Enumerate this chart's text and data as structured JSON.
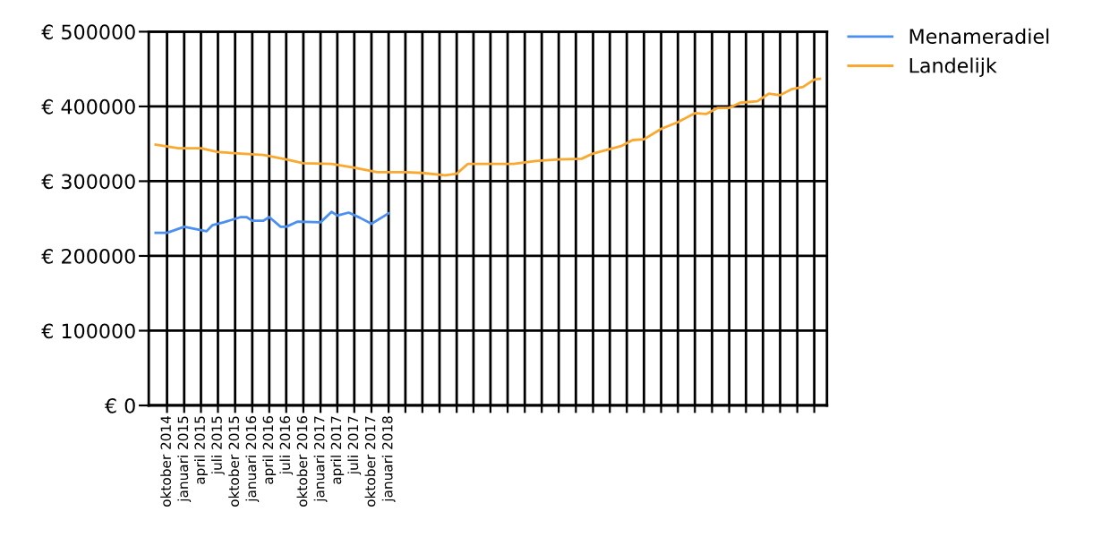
{
  "chart_data": {
    "type": "line",
    "ylim": [
      0,
      500000
    ],
    "yticks": [
      {
        "value": 0,
        "label": "€ 0"
      },
      {
        "value": 100000,
        "label": "€ 100000"
      },
      {
        "value": 200000,
        "label": "€ 200000"
      },
      {
        "value": 300000,
        "label": "€ 300000"
      },
      {
        "value": 400000,
        "label": "€ 400000"
      },
      {
        "value": 500000,
        "label": "€ 500000"
      }
    ],
    "xlim": [
      "2014-06-25",
      "2024-06-08"
    ],
    "xticks": [
      {
        "value": "2014-10",
        "label": "oktober 2014"
      },
      {
        "value": "2015-01",
        "label": "januari 2015"
      },
      {
        "value": "2015-04",
        "label": "april 2015"
      },
      {
        "value": "2015-07",
        "label": "juli 2015"
      },
      {
        "value": "2015-10",
        "label": "oktober 2015"
      },
      {
        "value": "2016-01",
        "label": "januari 2016"
      },
      {
        "value": "2016-04",
        "label": "april 2016"
      },
      {
        "value": "2016-07",
        "label": "juli 2016"
      },
      {
        "value": "2016-10",
        "label": "oktober 2016"
      },
      {
        "value": "2017-01",
        "label": "januari 2017"
      },
      {
        "value": "2017-04",
        "label": "april 2017"
      },
      {
        "value": "2017-07",
        "label": "juli 2017"
      },
      {
        "value": "2017-10",
        "label": "oktober 2017"
      },
      {
        "value": "2018-01",
        "label": "januari 2018"
      },
      {
        "value": "2018-04",
        "label": null
      },
      {
        "value": "2018-07",
        "label": null
      },
      {
        "value": "2018-10",
        "label": null
      },
      {
        "value": "2019-01",
        "label": null
      },
      {
        "value": "2019-04",
        "label": null
      },
      {
        "value": "2019-07",
        "label": null
      },
      {
        "value": "2019-10",
        "label": null
      },
      {
        "value": "2020-01",
        "label": null
      },
      {
        "value": "2020-04",
        "label": null
      },
      {
        "value": "2020-07",
        "label": null
      },
      {
        "value": "2020-10",
        "label": null
      },
      {
        "value": "2021-01",
        "label": null
      },
      {
        "value": "2021-04",
        "label": null
      },
      {
        "value": "2021-07",
        "label": null
      },
      {
        "value": "2021-10",
        "label": null
      },
      {
        "value": "2022-01",
        "label": null
      },
      {
        "value": "2022-04",
        "label": null
      },
      {
        "value": "2022-07",
        "label": null
      },
      {
        "value": "2022-10",
        "label": null
      },
      {
        "value": "2023-01",
        "label": null
      },
      {
        "value": "2023-04",
        "label": null
      },
      {
        "value": "2023-07",
        "label": null
      },
      {
        "value": "2023-10",
        "label": null
      },
      {
        "value": "2024-01",
        "label": null
      },
      {
        "value": "2024-04",
        "label": null
      }
    ],
    "grid": true,
    "legend": "top right",
    "series": [
      {
        "name": "Menameradiel",
        "color": "#4b8ff0",
        "x": [
          "2014-08",
          "2014-10",
          "2015-01",
          "2015-05",
          "2015-06",
          "2015-08",
          "2015-11",
          "2015-12",
          "2016-01",
          "2016-03",
          "2016-04",
          "2016-06",
          "2016-07",
          "2016-09",
          "2017-01",
          "2017-03",
          "2017-04",
          "2017-06",
          "2017-08",
          "2017-10",
          "2018-01"
        ],
        "values": [
          231000,
          231000,
          239000,
          233000,
          241000,
          245000,
          252000,
          252000,
          247000,
          247000,
          252000,
          239000,
          239000,
          246000,
          245000,
          259000,
          254000,
          258000,
          251000,
          243000,
          257000
        ]
      },
      {
        "name": "Landelijk",
        "color": "#f9a830",
        "x": [
          "2014-08",
          "2014-12",
          "2015-04",
          "2015-07",
          "2015-11",
          "2016-03",
          "2016-07",
          "2016-10",
          "2017-03",
          "2017-07",
          "2017-11",
          "2018-04",
          "2018-07",
          "2018-11",
          "2019-01",
          "2019-03",
          "2019-08",
          "2019-11",
          "2020-03",
          "2020-07",
          "2020-11",
          "2021-01",
          "2021-06",
          "2021-08",
          "2021-10",
          "2022-01",
          "2022-04",
          "2022-07",
          "2022-09",
          "2022-11",
          "2023-01",
          "2023-03",
          "2023-06",
          "2023-08",
          "2023-10",
          "2023-12",
          "2024-02",
          "2024-04",
          "2024-05"
        ],
        "values": [
          349000,
          344000,
          344000,
          339000,
          337000,
          335000,
          329000,
          324000,
          323000,
          318000,
          312000,
          312000,
          311000,
          308000,
          310000,
          323000,
          323000,
          323000,
          327000,
          329000,
          330000,
          337000,
          347000,
          355000,
          356000,
          370000,
          379000,
          391000,
          390000,
          398000,
          398000,
          405000,
          407000,
          417000,
          415000,
          423000,
          426000,
          436000,
          437000
        ]
      }
    ]
  }
}
